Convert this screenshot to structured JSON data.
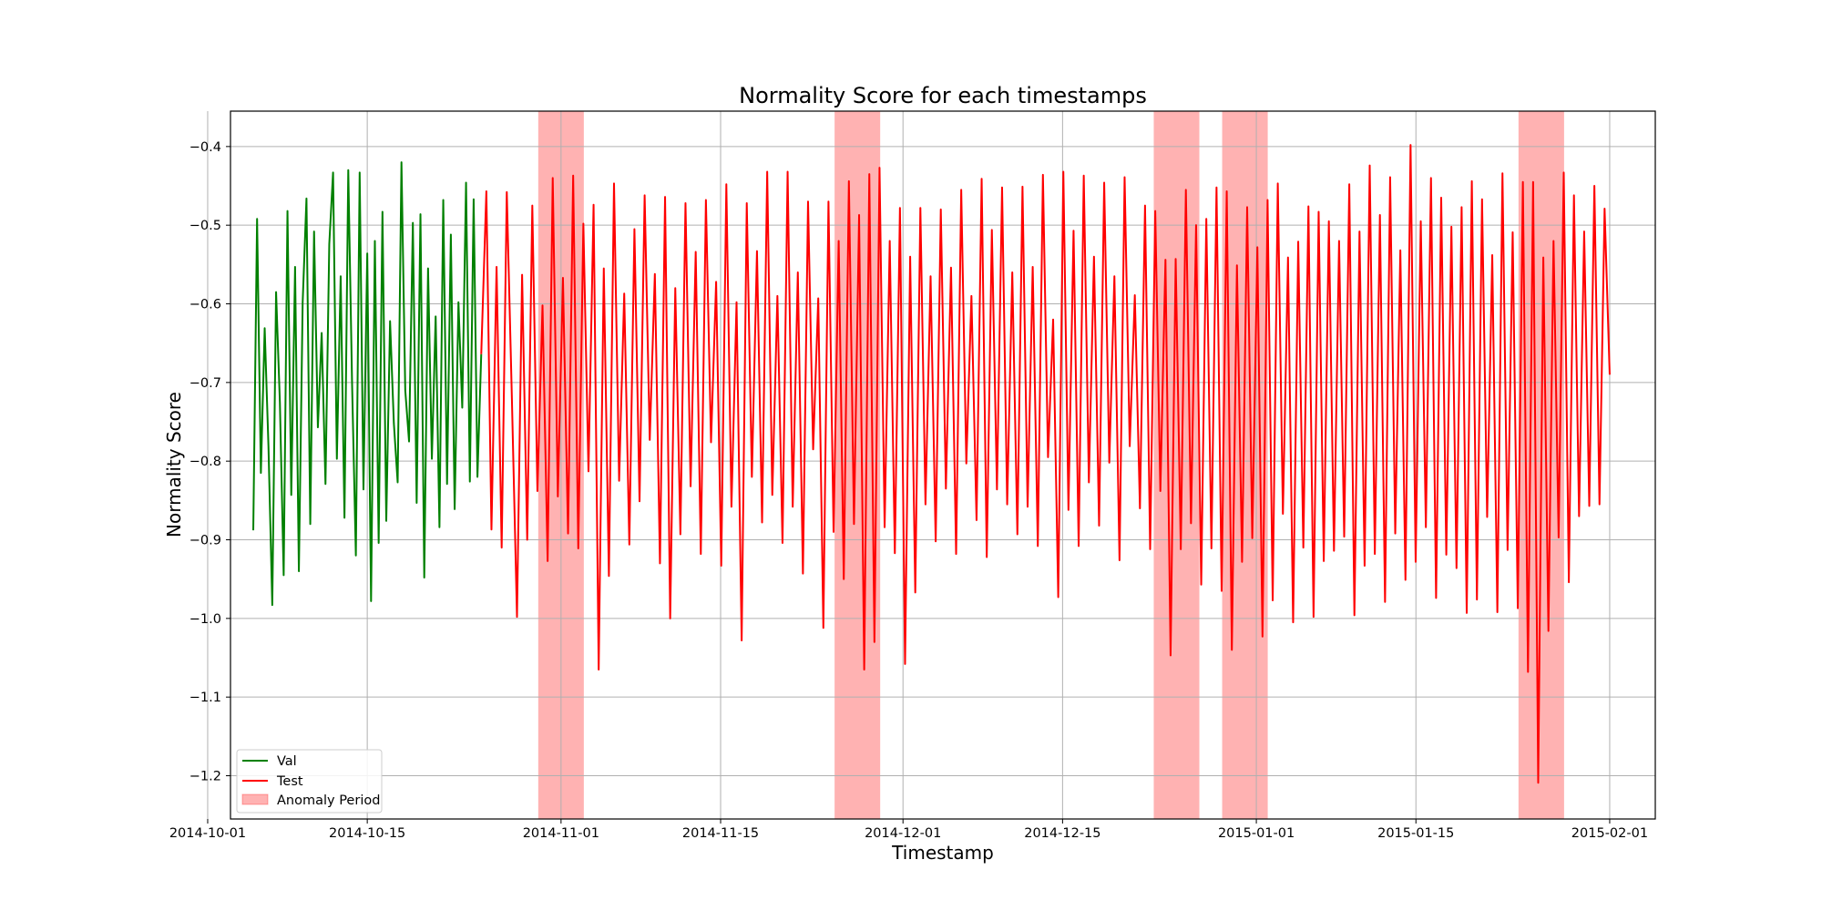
{
  "chart_data": {
    "type": "line",
    "title": "Normality Score for each timestamps",
    "xlabel": "Timestamp",
    "ylabel": "Normality Score",
    "xlim": [
      "2014-10-03",
      "2015-02-05"
    ],
    "ylim": [
      -1.255,
      -0.355
    ],
    "grid": true,
    "legend_position": "lower-left",
    "x_ticks": [
      "2014-10-01",
      "2014-10-15",
      "2014-11-01",
      "2014-11-15",
      "2014-12-01",
      "2014-12-15",
      "2015-01-01",
      "2015-01-15",
      "2015-02-01"
    ],
    "y_ticks": [
      "-0.4",
      "-0.5",
      "-0.6",
      "-0.7",
      "-0.8",
      "-0.9",
      "-1.0",
      "-1.1",
      "-1.2"
    ],
    "series": [
      {
        "name": "Val",
        "color": "#008000",
        "x_range": [
          "2014-10-05",
          "2014-10-25"
        ],
        "values": [
          -0.888,
          -0.492,
          -0.815,
          -0.631,
          -0.782,
          -0.983,
          -0.585,
          -0.725,
          -0.945,
          -0.482,
          -0.843,
          -0.553,
          -0.94,
          -0.598,
          -0.466,
          -0.88,
          -0.508,
          -0.757,
          -0.637,
          -0.829,
          -0.524,
          -0.433,
          -0.797,
          -0.565,
          -0.872,
          -0.43,
          -0.701,
          -0.92,
          -0.433,
          -0.836,
          -0.536,
          -0.978,
          -0.52,
          -0.904,
          -0.483,
          -0.876,
          -0.622,
          -0.752,
          -0.827,
          -0.42,
          -0.71,
          -0.775,
          -0.497,
          -0.853,
          -0.486,
          -0.948,
          -0.555,
          -0.797,
          -0.616,
          -0.884,
          -0.468,
          -0.829,
          -0.512,
          -0.861,
          -0.598,
          -0.732,
          -0.446,
          -0.826,
          -0.467,
          -0.82,
          -0.664
        ]
      },
      {
        "name": "Test",
        "color": "#ff0000",
        "x_range": [
          "2014-10-25",
          "2015-02-01"
        ],
        "values": [
          -0.664,
          -0.457,
          -0.887,
          -0.553,
          -0.91,
          -0.458,
          -0.72,
          -0.998,
          -0.563,
          -0.9,
          -0.475,
          -0.838,
          -0.602,
          -0.927,
          -0.44,
          -0.845,
          -0.567,
          -0.892,
          -0.437,
          -0.911,
          -0.498,
          -0.813,
          -0.474,
          -1.065,
          -0.555,
          -0.946,
          -0.447,
          -0.825,
          -0.587,
          -0.906,
          -0.505,
          -0.851,
          -0.462,
          -0.773,
          -0.562,
          -0.93,
          -0.464,
          -1.0,
          -0.58,
          -0.893,
          -0.472,
          -0.832,
          -0.534,
          -0.918,
          -0.468,
          -0.776,
          -0.572,
          -0.933,
          -0.448,
          -0.858,
          -0.598,
          -1.028,
          -0.472,
          -0.82,
          -0.533,
          -0.878,
          -0.432,
          -0.843,
          -0.59,
          -0.904,
          -0.432,
          -0.858,
          -0.56,
          -0.943,
          -0.47,
          -0.785,
          -0.593,
          -1.012,
          -0.47,
          -0.89,
          -0.52,
          -0.95,
          -0.444,
          -0.88,
          -0.487,
          -1.065,
          -0.435,
          -1.03,
          -0.427,
          -0.884,
          -0.52,
          -0.917,
          -0.478,
          -1.058,
          -0.54,
          -0.967,
          -0.478,
          -0.855,
          -0.565,
          -0.902,
          -0.48,
          -0.835,
          -0.554,
          -0.918,
          -0.455,
          -0.803,
          -0.59,
          -0.875,
          -0.441,
          -0.922,
          -0.506,
          -0.836,
          -0.452,
          -0.855,
          -0.56,
          -0.893,
          -0.451,
          -0.858,
          -0.553,
          -0.908,
          -0.436,
          -0.795,
          -0.62,
          -0.973,
          -0.432,
          -0.862,
          -0.507,
          -0.908,
          -0.437,
          -0.827,
          -0.54,
          -0.882,
          -0.446,
          -0.802,
          -0.565,
          -0.926,
          -0.439,
          -0.781,
          -0.589,
          -0.86,
          -0.475,
          -0.912,
          -0.482,
          -0.838,
          -0.544,
          -1.047,
          -0.543,
          -0.912,
          -0.455,
          -0.879,
          -0.5,
          -0.957,
          -0.492,
          -0.911,
          -0.452,
          -0.965,
          -0.457,
          -1.04,
          -0.551,
          -0.928,
          -0.477,
          -0.898,
          -0.528,
          -1.023,
          -0.468,
          -0.977,
          -0.447,
          -0.867,
          -0.541,
          -1.005,
          -0.521,
          -0.91,
          -0.476,
          -0.998,
          -0.483,
          -0.927,
          -0.495,
          -0.914,
          -0.52,
          -0.896,
          -0.448,
          -0.996,
          -0.508,
          -0.933,
          -0.424,
          -0.918,
          -0.487,
          -0.979,
          -0.439,
          -0.892,
          -0.532,
          -0.951,
          -0.398,
          -0.928,
          -0.495,
          -0.884,
          -0.44,
          -0.974,
          -0.465,
          -0.919,
          -0.502,
          -0.936,
          -0.477,
          -0.993,
          -0.444,
          -0.976,
          -0.467,
          -0.871,
          -0.538,
          -0.992,
          -0.434,
          -0.913,
          -0.509,
          -0.987,
          -0.445,
          -1.068,
          -0.445,
          -1.209,
          -0.541,
          -1.016,
          -0.52,
          -0.897,
          -0.433,
          -0.954,
          -0.462,
          -0.87,
          -0.508,
          -0.857,
          -0.45,
          -0.855,
          -0.479,
          -0.69
        ]
      }
    ],
    "anomaly_periods": [
      [
        "2014-10-30",
        "2014-11-03"
      ],
      [
        "2014-11-25",
        "2014-11-29"
      ],
      [
        "2014-12-23",
        "2014-12-27"
      ],
      [
        "2014-12-29",
        "2015-01-02"
      ],
      [
        "2015-01-24",
        "2015-01-28"
      ]
    ],
    "anomaly_color": "#ff0000",
    "anomaly_label": "Anomaly Period"
  }
}
